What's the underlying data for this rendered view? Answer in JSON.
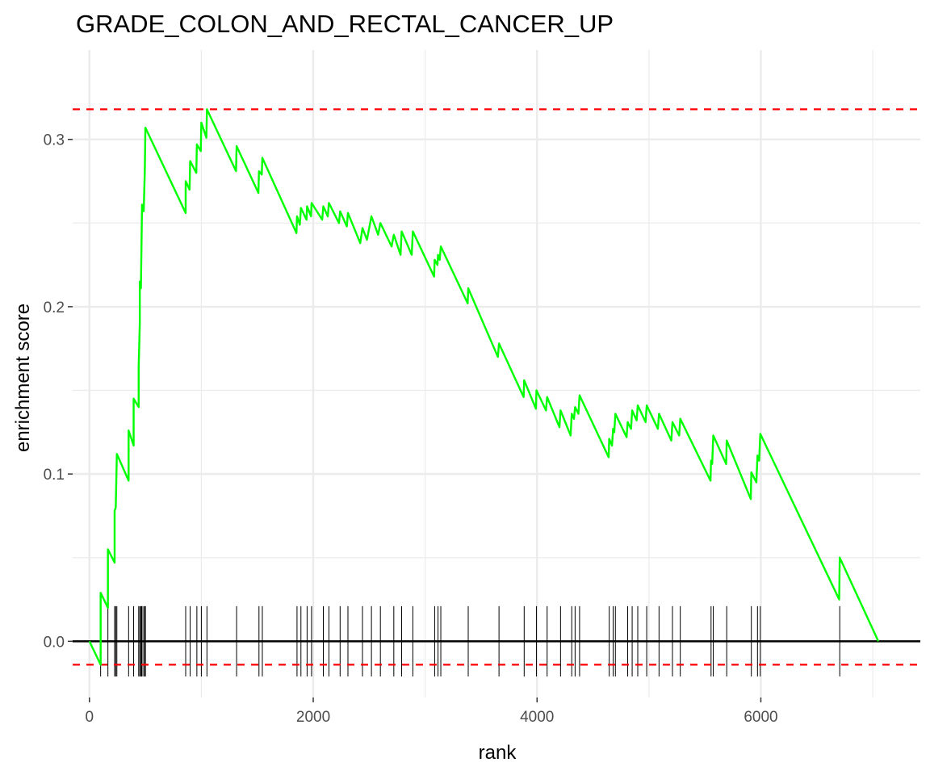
{
  "chart_data": {
    "type": "line",
    "title": "GRADE_COLON_AND_RECTAL_CANCER_UP",
    "xlabel": "rank",
    "ylabel": "enrichment score",
    "xlim": [
      -150,
      7425
    ],
    "ylim": [
      -0.0336,
      0.3534
    ],
    "x_ticks": [
      0,
      2000,
      4000,
      6000
    ],
    "x_tick_labels": [
      "0",
      "2000",
      "4000",
      "6000"
    ],
    "y_ticks": [
      0.0,
      0.1,
      0.2,
      0.3
    ],
    "y_tick_labels": [
      "0.0",
      "0.1",
      "0.2",
      "0.3"
    ],
    "grid": true,
    "colors": {
      "curve": "#00ff00",
      "threshold": "#ff0000",
      "baseline": "#000000",
      "hits": "#000000",
      "grid": "#ebebeb"
    },
    "thresholds": {
      "max": 0.318,
      "min": -0.014
    },
    "hit_y_range": [
      -0.021,
      0.021
    ],
    "series": [
      {
        "values": [
          [
            0,
            0
          ],
          [
            100,
            -0.014
          ],
          [
            100,
            0.029
          ],
          [
            165,
            0.02
          ],
          [
            165,
            0.055
          ],
          [
            225,
            0.047
          ],
          [
            225,
            0.078
          ],
          [
            235,
            0.08
          ],
          [
            245,
            0.112
          ],
          [
            350,
            0.096
          ],
          [
            350,
            0.126
          ],
          [
            395,
            0.117
          ],
          [
            395,
            0.145
          ],
          [
            440,
            0.14
          ],
          [
            440,
            0.164
          ],
          [
            450,
            0.19
          ],
          [
            450,
            0.215
          ],
          [
            460,
            0.211
          ],
          [
            465,
            0.236
          ],
          [
            470,
            0.261
          ],
          [
            485,
            0.257
          ],
          [
            495,
            0.282
          ],
          [
            500,
            0.307
          ],
          [
            860,
            0.256
          ],
          [
            860,
            0.275
          ],
          [
            895,
            0.27
          ],
          [
            900,
            0.287
          ],
          [
            955,
            0.28
          ],
          [
            960,
            0.297
          ],
          [
            995,
            0.293
          ],
          [
            1000,
            0.31
          ],
          [
            1045,
            0.301
          ],
          [
            1050,
            0.318
          ],
          [
            1310,
            0.281
          ],
          [
            1315,
            0.296
          ],
          [
            1510,
            0.268
          ],
          [
            1515,
            0.281
          ],
          [
            1540,
            0.279
          ],
          [
            1545,
            0.289
          ],
          [
            1850,
            0.244
          ],
          [
            1855,
            0.254
          ],
          [
            1880,
            0.249
          ],
          [
            1890,
            0.259
          ],
          [
            1940,
            0.252
          ],
          [
            1945,
            0.26
          ],
          [
            1980,
            0.254
          ],
          [
            1985,
            0.262
          ],
          [
            2080,
            0.252
          ],
          [
            2090,
            0.26
          ],
          [
            2130,
            0.254
          ],
          [
            2140,
            0.262
          ],
          [
            2230,
            0.25
          ],
          [
            2240,
            0.257
          ],
          [
            2300,
            0.248
          ],
          [
            2310,
            0.256
          ],
          [
            2420,
            0.238
          ],
          [
            2440,
            0.247
          ],
          [
            2480,
            0.24
          ],
          [
            2520,
            0.254
          ],
          [
            2580,
            0.243
          ],
          [
            2600,
            0.25
          ],
          [
            2700,
            0.236
          ],
          [
            2720,
            0.243
          ],
          [
            2780,
            0.231
          ],
          [
            2790,
            0.245
          ],
          [
            2880,
            0.231
          ],
          [
            2890,
            0.245
          ],
          [
            3080,
            0.218
          ],
          [
            3085,
            0.228
          ],
          [
            3110,
            0.225
          ],
          [
            3115,
            0.231
          ],
          [
            3130,
            0.228
          ],
          [
            3140,
            0.236
          ],
          [
            3380,
            0.202
          ],
          [
            3385,
            0.211
          ],
          [
            3650,
            0.17
          ],
          [
            3660,
            0.178
          ],
          [
            3880,
            0.146
          ],
          [
            3885,
            0.156
          ],
          [
            3990,
            0.139
          ],
          [
            3995,
            0.15
          ],
          [
            4080,
            0.138
          ],
          [
            4090,
            0.146
          ],
          [
            4200,
            0.128
          ],
          [
            4210,
            0.138
          ],
          [
            4300,
            0.123
          ],
          [
            4310,
            0.136
          ],
          [
            4330,
            0.133
          ],
          [
            4340,
            0.14
          ],
          [
            4370,
            0.136
          ],
          [
            4380,
            0.147
          ],
          [
            4640,
            0.11
          ],
          [
            4645,
            0.121
          ],
          [
            4670,
            0.117
          ],
          [
            4680,
            0.127
          ],
          [
            4690,
            0.125
          ],
          [
            4700,
            0.136
          ],
          [
            4800,
            0.122
          ],
          [
            4810,
            0.131
          ],
          [
            4840,
            0.127
          ],
          [
            4850,
            0.138
          ],
          [
            4890,
            0.132
          ],
          [
            4900,
            0.141
          ],
          [
            4970,
            0.131
          ],
          [
            4980,
            0.141
          ],
          [
            5080,
            0.127
          ],
          [
            5090,
            0.136
          ],
          [
            5200,
            0.12
          ],
          [
            5210,
            0.131
          ],
          [
            5270,
            0.123
          ],
          [
            5280,
            0.133
          ],
          [
            5550,
            0.096
          ],
          [
            5555,
            0.108
          ],
          [
            5565,
            0.106
          ],
          [
            5575,
            0.123
          ],
          [
            5690,
            0.106
          ],
          [
            5695,
            0.12
          ],
          [
            5910,
            0.085
          ],
          [
            5915,
            0.101
          ],
          [
            5960,
            0.095
          ],
          [
            5970,
            0.111
          ],
          [
            5985,
            0.108
          ],
          [
            5995,
            0.124
          ],
          [
            6700,
            0.025
          ],
          [
            6705,
            0.05
          ],
          [
            7050,
            0
          ]
        ]
      }
    ],
    "hits": [
      100,
      165,
      225,
      235,
      245,
      350,
      395,
      440,
      450,
      460,
      465,
      470,
      485,
      495,
      500,
      860,
      900,
      960,
      1000,
      1050,
      1315,
      1515,
      1545,
      1855,
      1890,
      1945,
      1985,
      2090,
      2140,
      2240,
      2310,
      2440,
      2520,
      2600,
      2720,
      2790,
      2890,
      3085,
      3115,
      3140,
      3385,
      3660,
      3885,
      3995,
      4090,
      4210,
      4310,
      4340,
      4380,
      4645,
      4680,
      4700,
      4810,
      4850,
      4900,
      4980,
      5090,
      5210,
      5280,
      5555,
      5575,
      5695,
      5915,
      5970,
      5995,
      6705
    ]
  }
}
